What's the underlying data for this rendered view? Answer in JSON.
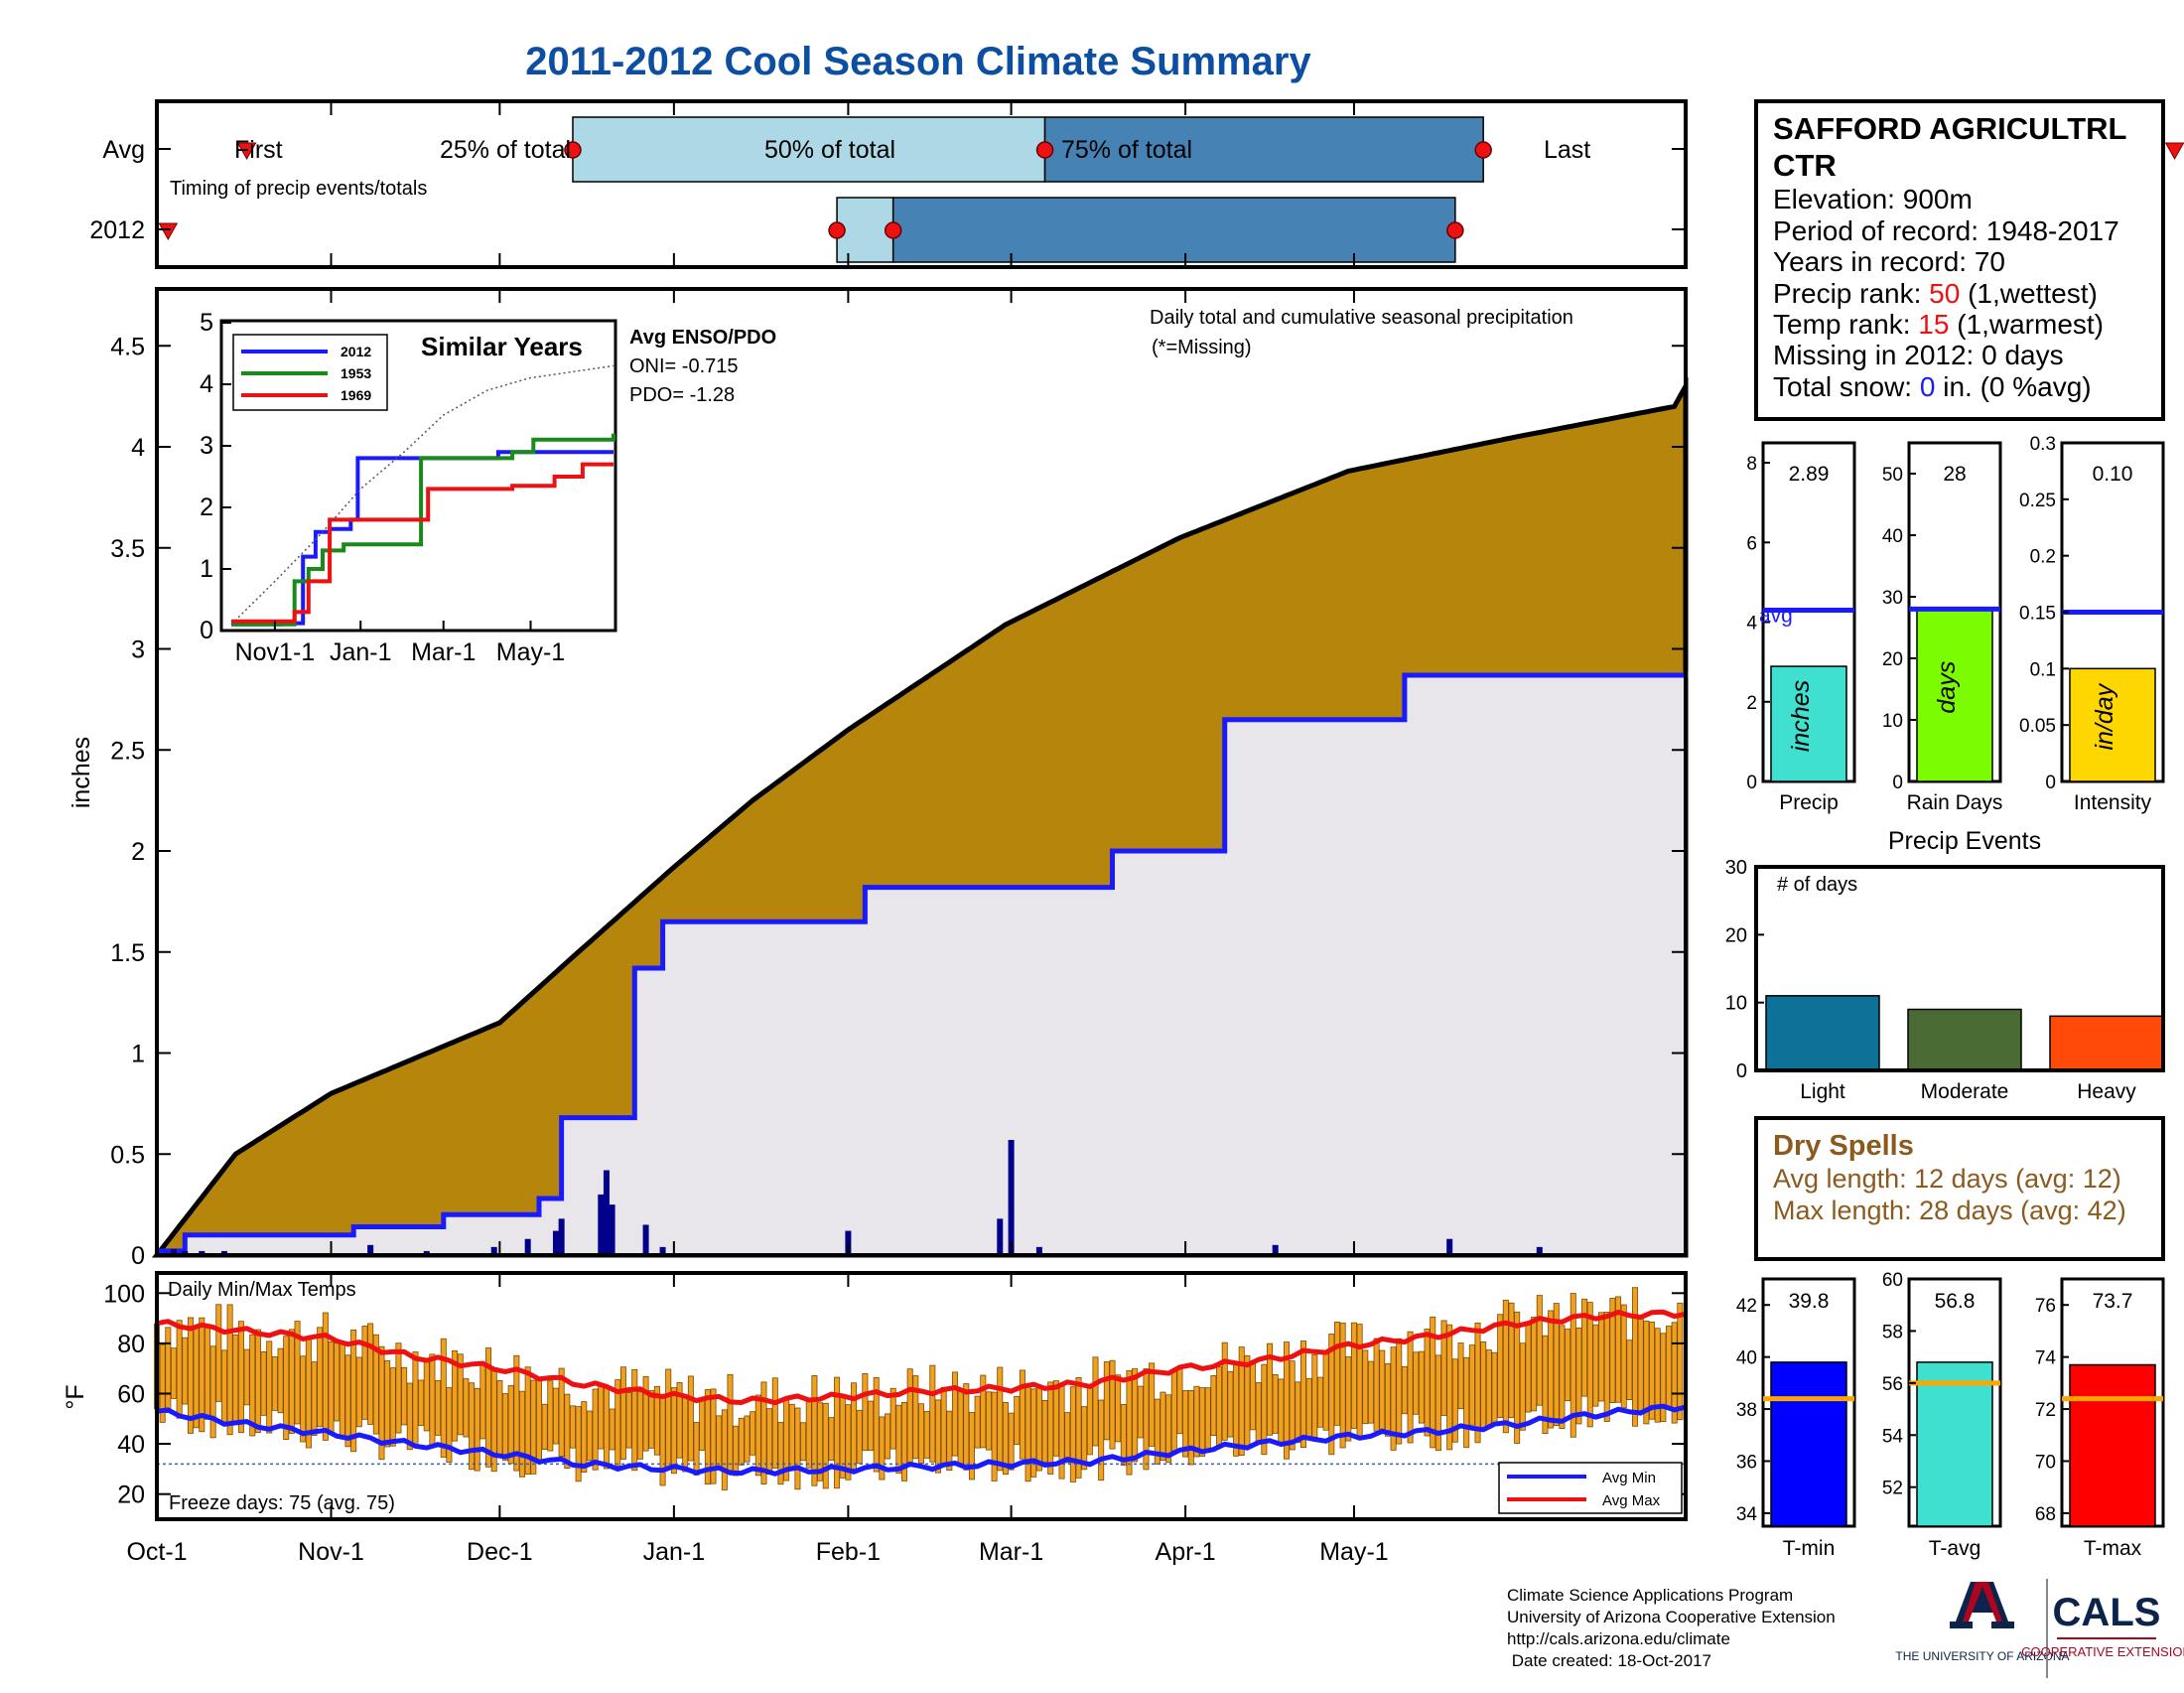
{
  "title": "2011-2012 Cool Season Climate Summary",
  "station": {
    "name_line1": "SAFFORD AGRICULTRL",
    "name_line2": "CTR",
    "elevation": "Elevation: 900m",
    "period": "Period of record: 1948-2017",
    "years": "Years in record: 70",
    "precip_rank_label": "Precip rank: ",
    "precip_rank_value": "50",
    "precip_rank_note": " (1,wettest)",
    "temp_rank_label": "Temp rank: ",
    "temp_rank_value": "15",
    "temp_rank_note": " (1,warmest)",
    "missing": "Missing in 2012: 0 days",
    "snow_label": "Total snow: ",
    "snow_value": "0",
    "snow_note": " in. (0 %avg)"
  },
  "timing": {
    "row_avg": "Avg",
    "row_2012": "2012",
    "first": "First",
    "p25": "25% of total",
    "p50": "50% of total",
    "p75": "75% of total",
    "last": "Last",
    "caption": "Timing of precip events/totals",
    "avg_first_day": 16,
    "avg_q25_day": 74,
    "avg_q50_day": 158,
    "avg_q75_day": 236,
    "avg_last_day": 359,
    "y2012_first_day": 2,
    "y2012_q25_day": 121,
    "y2012_q50_day": 131,
    "y2012_q75_day": 231,
    "y2012_last_day": 370
  },
  "main_chart": {
    "ylabel": "inches",
    "annotation": "Daily total and cumulative seasonal precipitation",
    "missing_note": "(*=Missing)",
    "yticks": [
      "0",
      "0.5",
      "1",
      "1.5",
      "2",
      "2.5",
      "3",
      "3.5",
      "4",
      "4.5"
    ],
    "xticks": [
      "Oct-1",
      "Nov-1",
      "Dec-1",
      "Jan-1",
      "Feb-1",
      "Mar-1",
      "Apr-1",
      "May-1"
    ],
    "colors": {
      "avg_fill": "#b5860b",
      "fill_2012": "#e8e6ea",
      "line_2012": "#1a1aff",
      "daily_bar": "#00008b"
    }
  },
  "inset": {
    "title": "Similar Years",
    "legend": [
      "2012",
      "1953",
      "1969"
    ],
    "colors": [
      "#1a1aff",
      "#1a8a1a",
      "#ee1111"
    ],
    "yticks": [
      "0",
      "1",
      "2",
      "3",
      "4",
      "5"
    ],
    "xticks": [
      "Nov1-1",
      "Jan-1",
      "Mar-1",
      "May-1"
    ],
    "enso_title": "Avg ENSO/PDO",
    "oni": "ONI= -0.715",
    "pdo": "PDO= -1.28"
  },
  "temp_chart": {
    "label": "Daily Min/Max Temps",
    "ylabel": "°F",
    "yticks": [
      "20",
      "40",
      "60",
      "80",
      "100"
    ],
    "freeze": "Freeze days: 75 (avg. 75)",
    "legend_min": "Avg Min",
    "legend_max": "Avg Max",
    "colors": {
      "bar": "#f0a020",
      "avg_min": "#1a1aff",
      "avg_max": "#ee1111",
      "freeze_line": "#3060c0"
    }
  },
  "summary_bars": [
    {
      "label": "Precip",
      "value_text": "2.89",
      "value": 2.89,
      "avg": 4.3,
      "ymax": 8.5,
      "yticks": [
        "0",
        "2",
        "4",
        "6",
        "8"
      ],
      "tick_vals": [
        0,
        2,
        4,
        6,
        8
      ],
      "unit": "inches",
      "color": "#40e0d0",
      "avg_label": "avg"
    },
    {
      "label": "Rain Days",
      "value_text": "28",
      "value": 28,
      "avg": 28,
      "ymax": 55,
      "yticks": [
        "0",
        "10",
        "20",
        "30",
        "40",
        "50"
      ],
      "tick_vals": [
        0,
        10,
        20,
        30,
        40,
        50
      ],
      "unit": "days",
      "color": "#7cfc00",
      "avg_label": ""
    },
    {
      "label": "Intensity",
      "value_text": "0.10",
      "value": 0.1,
      "avg": 0.15,
      "ymax": 0.3,
      "yticks": [
        "0",
        "0.05",
        "0.1",
        "0.15",
        "0.2",
        "0.25",
        "0.3"
      ],
      "tick_vals": [
        0,
        0.05,
        0.1,
        0.15,
        0.2,
        0.25,
        0.3
      ],
      "unit": "in/day",
      "color": "#ffd700",
      "avg_label": ""
    }
  ],
  "precip_events": {
    "title": "Precip Events",
    "ylabel_inside": "# of days",
    "yticks": [
      "0",
      "10",
      "20",
      "30"
    ],
    "categories": [
      "Light",
      "Moderate",
      "Heavy"
    ],
    "values": [
      11,
      9,
      8
    ],
    "colors": [
      "#0e7298",
      "#4a6b34",
      "#ff4a0a"
    ]
  },
  "dry_spells": {
    "title": "Dry Spells",
    "avg": "Avg length: 12 days (avg: 12)",
    "max": "Max length: 28 days (avg: 42)",
    "color": "#8b5a1e"
  },
  "temp_bars": [
    {
      "label": "T-min",
      "value_text": "39.8",
      "value": 39.8,
      "avg": 38.4,
      "ymin": 33.5,
      "ymax": 43.0,
      "yticks": [
        "34",
        "36",
        "38",
        "40",
        "42"
      ],
      "tick_vals": [
        34,
        36,
        38,
        40,
        42
      ],
      "color": "#0000ff"
    },
    {
      "label": "T-avg",
      "value_text": "56.8",
      "value": 56.8,
      "avg": 56.0,
      "ymin": 50.5,
      "ymax": 60.0,
      "yticks": [
        "52",
        "54",
        "56",
        "58",
        "60"
      ],
      "tick_vals": [
        52,
        54,
        56,
        58,
        60
      ],
      "color": "#40e0d0"
    },
    {
      "label": "T-max",
      "value_text": "73.7",
      "value": 73.7,
      "avg": 72.4,
      "ymin": 67.5,
      "ymax": 77.0,
      "yticks": [
        "68",
        "70",
        "72",
        "74",
        "76"
      ],
      "tick_vals": [
        68,
        70,
        72,
        74,
        76
      ],
      "color": "#ff0000"
    }
  ],
  "footer": {
    "line1": "Climate Science Applications Program",
    "line2": "University of Arizona Cooperative Extension",
    "line3": "http://cals.arizona.edu/climate",
    "line4": " Date created: 18-Oct-2017",
    "ua_logo": "THE UNIVERSITY OF ARIZONA",
    "cals_logo": "CALS",
    "cals_sub": "COOPERATIVE EXTENSION"
  },
  "chart_data": [
    {
      "type": "area",
      "title": "Daily total and cumulative seasonal precipitation",
      "ylabel": "inches",
      "ylim": [
        0,
        4.8
      ],
      "x_range": [
        "Oct-1",
        "Jun-30"
      ],
      "series": [
        {
          "name": "",
          "kind": "cumulative_avg",
          "x_day": [
            0,
            14,
            31,
            61,
            75,
            92,
            106,
            123,
            151,
            182,
            212,
            242,
            270,
            272
          ],
          "values": [
            0,
            0.5,
            0.8,
            1.15,
            1.5,
            1.92,
            2.25,
            2.6,
            3.12,
            3.55,
            3.88,
            4.05,
            4.2,
            4.3
          ]
        },
        {
          "name": "2012",
          "kind": "cumulative_2012",
          "x_day": [
            0,
            5,
            20,
            35,
            51,
            68,
            72,
            85,
            90,
            120,
            126,
            150,
            170,
            190,
            222,
            272
          ],
          "values": [
            0.02,
            0.1,
            0.1,
            0.14,
            0.2,
            0.28,
            0.68,
            1.42,
            1.65,
            1.65,
            1.82,
            1.82,
            2.0,
            2.65,
            2.87,
            2.89
          ]
        }
      ],
      "daily_x_day": [
        3,
        5,
        8,
        12,
        38,
        48,
        60,
        66,
        71,
        72,
        79,
        80,
        81,
        87,
        90,
        123,
        150,
        152,
        157,
        199,
        230,
        246
      ],
      "daily_values": [
        0.03,
        0.02,
        0.02,
        0.02,
        0.05,
        0.02,
        0.04,
        0.08,
        0.12,
        0.18,
        0.3,
        0.42,
        0.25,
        0.15,
        0.04,
        0.12,
        0.18,
        0.57,
        0.04,
        0.05,
        0.08,
        0.04
      ]
    },
    {
      "type": "line",
      "title": "Similar Years",
      "ylim": [
        0,
        5
      ],
      "series": [
        {
          "name": "2012",
          "x_day": [
            0,
            20,
            35,
            51,
            60,
            70,
            72,
            85,
            90,
            120,
            126,
            150,
            170,
            190,
            200,
            272
          ],
          "values": [
            0.1,
            0.1,
            0.12,
            1.2,
            1.6,
            1.65,
            1.65,
            1.8,
            2.8,
            2.8,
            2.8,
            2.8,
            2.8,
            2.9,
            2.9,
            2.9
          ]
        },
        {
          "name": "1953",
          "x_day": [
            0,
            30,
            45,
            55,
            65,
            80,
            90,
            120,
            135,
            150,
            200,
            215,
            230,
            272
          ],
          "values": [
            0.1,
            0.1,
            0.8,
            1.0,
            1.3,
            1.4,
            1.4,
            1.4,
            2.8,
            2.8,
            2.9,
            3.1,
            3.1,
            3.2
          ]
        },
        {
          "name": "1969",
          "x_day": [
            0,
            20,
            45,
            55,
            70,
            90,
            120,
            140,
            170,
            200,
            230,
            250,
            272
          ],
          "values": [
            0.15,
            0.15,
            0.3,
            0.8,
            1.8,
            1.8,
            1.8,
            2.3,
            2.3,
            2.35,
            2.5,
            2.7,
            2.7
          ]
        },
        {
          "name": "",
          "kind": "avg_dotted",
          "x_day": [
            0,
            31,
            61,
            92,
            123,
            151,
            182,
            212,
            242,
            272
          ],
          "values": [
            0.1,
            0.8,
            1.5,
            2.3,
            2.9,
            3.5,
            3.9,
            4.1,
            4.2,
            4.3
          ]
        }
      ]
    },
    {
      "type": "line",
      "title": "Daily Min/Max Temps",
      "ylabel": "°F",
      "ylim": [
        10,
        105
      ],
      "series": [
        {
          "name": "Avg Max",
          "x_day": [
            0,
            15,
            31,
            45,
            61,
            75,
            92,
            105,
            123,
            137,
            151,
            166,
            182,
            196,
            212,
            227,
            242,
            257,
            272
          ],
          "values": [
            88,
            85,
            82,
            75,
            70,
            64,
            59,
            57,
            59,
            61,
            62,
            64,
            70,
            73,
            79,
            83,
            88,
            91,
            92
          ]
        },
        {
          "name": "Avg Min",
          "x_day": [
            0,
            15,
            31,
            45,
            61,
            75,
            92,
            105,
            123,
            137,
            151,
            166,
            182,
            196,
            212,
            227,
            242,
            257,
            272
          ],
          "values": [
            53,
            48,
            44,
            40,
            36,
            32,
            30,
            29,
            30,
            31,
            32,
            33,
            37,
            40,
            43,
            45,
            48,
            52,
            55
          ]
        }
      ],
      "freeze_line": 32
    }
  ]
}
